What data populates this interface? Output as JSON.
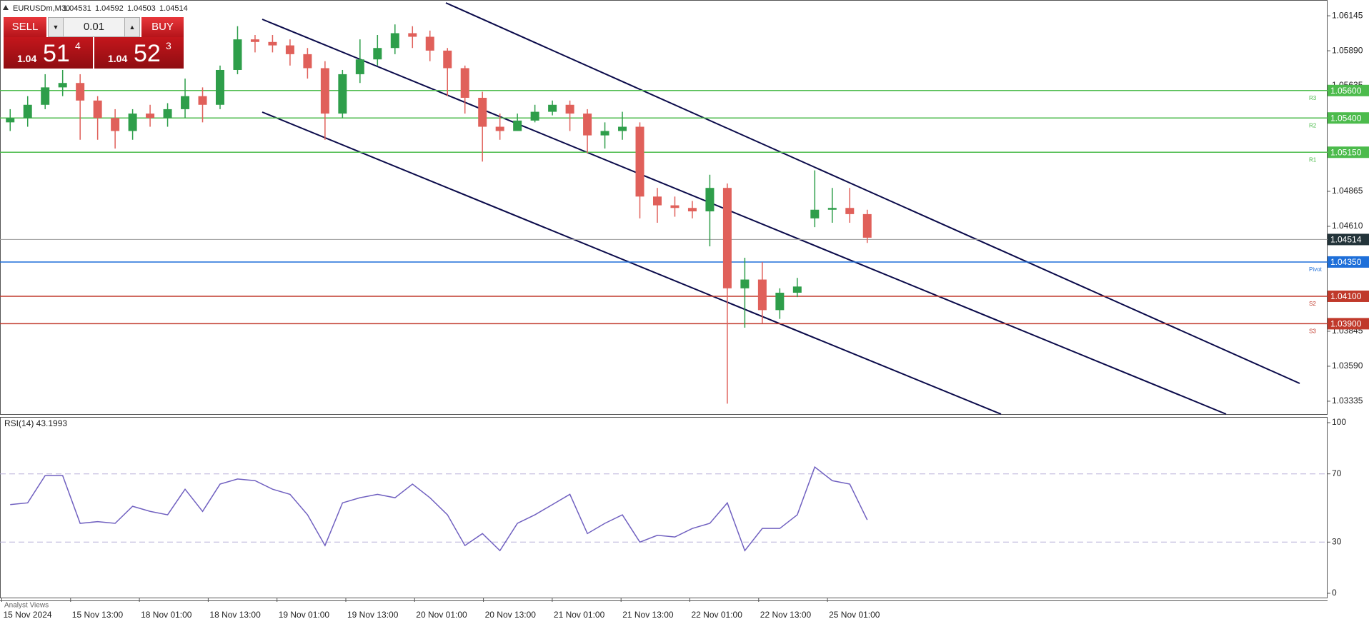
{
  "header": {
    "symbol": "EURUSDm,M30",
    "open": "1.04531",
    "high": "1.04592",
    "low": "1.04503",
    "close": "1.04514"
  },
  "trade_panel": {
    "sell": "SELL",
    "lot": "0.01",
    "buy": "BUY",
    "bid": {
      "big": "1.04",
      "main": "51",
      "sup": "4"
    },
    "ask": {
      "big": "1.04",
      "main": "52",
      "sup": "3"
    }
  },
  "time_axis": [
    "15 Nov 2024",
    "15 Nov 13:00",
    "18 Nov 01:00",
    "18 Nov 13:00",
    "19 Nov 01:00",
    "19 Nov 13:00",
    "20 Nov 01:00",
    "20 Nov 13:00",
    "21 Nov 01:00",
    "21 Nov 13:00",
    "22 Nov 01:00",
    "22 Nov 13:00",
    "25 Nov 01:00"
  ],
  "footer": "Analyst Views",
  "chart_data": [
    {
      "type": "candlestick",
      "up_color": "#2e9e4a",
      "down_color": "#e0605a",
      "ylim": [
        1.03241,
        1.06247
      ],
      "yticks": [
        1.06145,
        {
          "value": 1.0589,
          "label": "1.05890"
        },
        1.05635,
        1.04865,
        {
          "value": 1.0461,
          "label": "1.04610"
        },
        1.03845,
        {
          "value": 1.0359,
          "label": "1.03590"
        },
        1.03335
      ],
      "last_price": 1.04514,
      "levels": [
        {
          "name": "R3",
          "value": 1.056,
          "label": "1.05600",
          "color": "#4cbb4c"
        },
        {
          "name": "R2",
          "value": 1.054,
          "label": "1.05400",
          "color": "#4cbb4c"
        },
        {
          "name": "R1",
          "value": 1.0515,
          "label": "1.05150",
          "color": "#4cbb4c"
        },
        {
          "name": "Pivot",
          "value": 1.0435,
          "label": "1.04350",
          "color": "#1e6fd9"
        },
        {
          "name": "S2",
          "value": 1.041,
          "label": "1.04100",
          "color": "#c0392b"
        },
        {
          "name": "S3",
          "value": 1.039,
          "label": "1.03900",
          "color": "#c0392b"
        }
      ],
      "open": [
        1.05368,
        1.054,
        1.05496,
        1.05623,
        1.05655,
        1.05527,
        1.054,
        1.05305,
        1.05432,
        1.054,
        1.05464,
        1.05559,
        1.05496,
        1.0575,
        1.05973,
        1.05954,
        1.05929,
        1.05865,
        1.05763,
        1.05432,
        1.05719,
        1.05827,
        1.0591,
        1.06018,
        1.05992,
        1.05891,
        1.05763,
        1.05547,
        1.05336,
        1.05305,
        1.05381,
        1.05445,
        1.05496,
        1.05432,
        1.05273,
        1.05305,
        1.05336,
        1.04827,
        1.04763,
        1.04744,
        1.04719,
        1.0489,
        1.04158,
        1.04222,
        1.03999,
        1.04126,
        1.04668,
        1.04731,
        1.04744,
        1.04699
      ],
      "high": [
        1.05464,
        1.05559,
        1.05719,
        1.0575,
        1.05719,
        1.05559,
        1.05464,
        1.05464,
        1.05496,
        1.05508,
        1.05687,
        1.05623,
        1.05782,
        1.06069,
        1.06005,
        1.06005,
        1.05973,
        1.0591,
        1.05814,
        1.0575,
        1.05973,
        1.06005,
        1.06082,
        1.06069,
        1.06037,
        1.0591,
        1.05782,
        1.05591,
        1.05432,
        1.05432,
        1.05496,
        1.05527,
        1.05527,
        1.05464,
        1.05368,
        1.05445,
        1.05368,
        1.0489,
        1.04827,
        1.04795,
        1.04986,
        1.04922,
        1.04381,
        1.04349,
        1.04158,
        1.04234,
        1.05018,
        1.0489,
        1.0489,
        1.04731
      ],
      "low": [
        1.05305,
        1.05336,
        1.05464,
        1.05559,
        1.05241,
        1.05241,
        1.05177,
        1.05241,
        1.05336,
        1.05336,
        1.054,
        1.05368,
        1.05464,
        1.05719,
        1.05878,
        1.05878,
        1.05782,
        1.05687,
        1.05241,
        1.054,
        1.05655,
        1.05782,
        1.05865,
        1.0591,
        1.05814,
        1.05559,
        1.05432,
        1.05082,
        1.05241,
        1.05305,
        1.05368,
        1.05419,
        1.05305,
        1.05145,
        1.05177,
        1.05241,
        1.04668,
        1.04636,
        1.0468,
        1.04668,
        1.04464,
        1.03317,
        1.03871,
        1.03903,
        1.03935,
        1.04094,
        1.04604,
        1.04636,
        1.04636,
        1.04489
      ],
      "close": [
        1.054,
        1.05496,
        1.05623,
        1.05655,
        1.05527,
        1.054,
        1.05305,
        1.05432,
        1.054,
        1.05464,
        1.05559,
        1.05496,
        1.0575,
        1.05973,
        1.05954,
        1.05929,
        1.05865,
        1.05763,
        1.05432,
        1.05719,
        1.05827,
        1.0591,
        1.06018,
        1.05992,
        1.05891,
        1.05763,
        1.05547,
        1.05336,
        1.05305,
        1.05381,
        1.05445,
        1.05496,
        1.05432,
        1.05273,
        1.05305,
        1.05336,
        1.04827,
        1.04763,
        1.04744,
        1.04719,
        1.0489,
        1.04158,
        1.04222,
        1.03999,
        1.04126,
        1.04171,
        1.04731,
        1.04744,
        1.04699,
        1.04527
      ]
    },
    {
      "type": "line",
      "title": "RSI(14) 43.1993",
      "color": "#7060c0",
      "ylim": [
        0,
        100
      ],
      "yticks": [
        0,
        30,
        70,
        100
      ],
      "levels": [
        30,
        70
      ],
      "values": [
        52,
        53,
        69,
        69,
        41,
        42,
        41,
        51,
        48,
        46,
        61,
        48,
        64,
        67,
        66,
        61,
        58,
        46,
        28,
        53,
        56,
        58,
        56,
        64,
        56,
        46,
        28,
        35,
        25,
        41,
        46,
        52,
        58,
        35,
        41,
        46,
        30,
        34,
        33,
        38,
        41,
        53,
        25,
        38,
        38,
        46,
        74,
        66,
        64,
        43
      ]
    }
  ]
}
